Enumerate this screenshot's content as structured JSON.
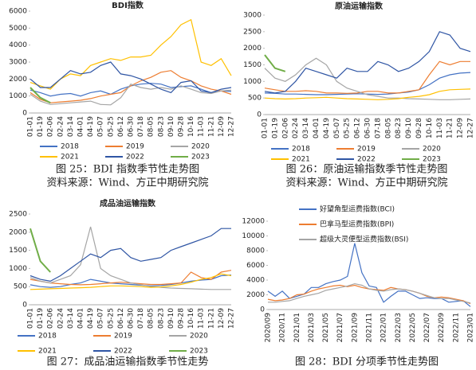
{
  "chart_data": [
    {
      "type": "line",
      "title": "BDI指数",
      "categories": [
        "01-01",
        "01-19",
        "02-06",
        "02-24",
        "03-14",
        "04-01",
        "04-19",
        "05-07",
        "05-25",
        "06-12",
        "06-30",
        "07-18",
        "08-05",
        "08-23",
        "09-10",
        "09-28",
        "10-16",
        "11-03",
        "11-21",
        "12-09",
        "12-27"
      ],
      "ylim": [
        0,
        6000
      ],
      "yticks": [
        0,
        1000,
        2000,
        3000,
        4000,
        5000,
        6000
      ],
      "legend": "bottom",
      "series": [
        {
          "name": "2018",
          "color": "#4472c4",
          "values": [
            1350,
            1200,
            1000,
            1100,
            1150,
            1000,
            1200,
            1300,
            1100,
            1400,
            1600,
            1700,
            1750,
            1700,
            1500,
            1550,
            1600,
            1400,
            1200,
            1300,
            1270
          ]
        },
        {
          "name": "2019",
          "color": "#ed7d31",
          "values": [
            1200,
            800,
            600,
            650,
            700,
            750,
            850,
            1000,
            1100,
            1200,
            1600,
            1900,
            2100,
            2400,
            2500,
            2100,
            1900,
            1600,
            1400,
            1300,
            1100
          ]
        },
        {
          "name": "2020",
          "color": "#a5a5a5",
          "values": [
            1100,
            700,
            500,
            550,
            600,
            650,
            700,
            500,
            480,
            900,
            1700,
            1500,
            1400,
            1500,
            1400,
            1600,
            1400,
            1200,
            1150,
            1300,
            1350
          ]
        },
        {
          "name": "2021",
          "color": "#ffc000",
          "values": [
            1800,
            1600,
            1400,
            2000,
            2300,
            2200,
            2800,
            3000,
            3200,
            3100,
            3300,
            3300,
            3400,
            4000,
            4500,
            5200,
            5500,
            3000,
            2800,
            3200,
            2200
          ]
        },
        {
          "name": "2022",
          "color": "#2f55a4",
          "values": [
            2000,
            1500,
            1500,
            2000,
            2500,
            2300,
            2400,
            2800,
            3000,
            2300,
            2200,
            2000,
            1700,
            1400,
            1200,
            1800,
            1900,
            1300,
            1200,
            1400,
            1500
          ]
        },
        {
          "name": "2023",
          "color": "#70ad47",
          "values": [
            1500,
            900,
            600,
            null,
            null,
            null,
            null,
            null,
            null,
            null,
            null,
            null,
            null,
            null,
            null,
            null,
            null,
            null,
            null,
            null,
            null
          ]
        }
      ]
    },
    {
      "type": "line",
      "title": "原油运输指数",
      "categories": [
        "01-01",
        "01-19",
        "02-06",
        "02-24",
        "03-14",
        "04-01",
        "04-19",
        "05-07",
        "05-25",
        "06-12",
        "06-30",
        "07-18",
        "08-05",
        "08-23",
        "09-10",
        "09-28",
        "10-16",
        "11-03",
        "11-21",
        "12-09",
        "12-27"
      ],
      "ylim": [
        0,
        3000
      ],
      "yticks": [
        0,
        500,
        1000,
        1500,
        2000,
        2500,
        3000
      ],
      "legend": "bottom",
      "series": [
        {
          "name": "2018",
          "color": "#4472c4",
          "values": [
            650,
            640,
            620,
            620,
            610,
            600,
            600,
            610,
            620,
            630,
            620,
            610,
            620,
            650,
            680,
            750,
            900,
            1100,
            1200,
            1250,
            1270
          ]
        },
        {
          "name": "2019",
          "color": "#ed7d31",
          "values": [
            800,
            750,
            700,
            700,
            720,
            700,
            650,
            650,
            640,
            650,
            700,
            700,
            650,
            650,
            700,
            750,
            1200,
            1600,
            1500,
            1600,
            1600
          ]
        },
        {
          "name": "2020",
          "color": "#a5a5a5",
          "values": [
            1400,
            1100,
            1000,
            1200,
            1500,
            1700,
            1500,
            1000,
            800,
            700,
            600,
            550,
            500,
            500,
            480,
            470,
            460,
            450,
            450,
            460,
            470
          ]
        },
        {
          "name": "2021",
          "color": "#ffc000",
          "values": [
            500,
            480,
            470,
            480,
            500,
            510,
            520,
            500,
            480,
            470,
            460,
            450,
            460,
            480,
            520,
            550,
            600,
            700,
            750,
            760,
            770
          ]
        },
        {
          "name": "2022",
          "color": "#2f55a4",
          "values": [
            700,
            650,
            700,
            1000,
            1400,
            1300,
            1200,
            1100,
            1400,
            1300,
            1300,
            1600,
            1500,
            1300,
            1400,
            1600,
            1900,
            2500,
            2400,
            2000,
            1900
          ]
        },
        {
          "name": "2023",
          "color": "#70ad47",
          "values": [
            1800,
            1400,
            1300,
            null,
            null,
            null,
            null,
            null,
            null,
            null,
            null,
            null,
            null,
            null,
            null,
            null,
            null,
            null,
            null,
            null,
            null
          ]
        }
      ]
    },
    {
      "type": "line",
      "title": "成品油运输指数",
      "categories": [
        "01-01",
        "01-19",
        "02-06",
        "02-24",
        "03-14",
        "04-01",
        "04-19",
        "05-07",
        "05-25",
        "06-12",
        "06-30",
        "07-18",
        "08-05",
        "08-23",
        "09-10",
        "09-28",
        "10-16",
        "11-03",
        "11-21",
        "12-09",
        "12-27"
      ],
      "ylim": [
        0,
        2500
      ],
      "yticks": [
        0,
        500,
        1000,
        1500,
        2000,
        2500
      ],
      "legend": "bottom",
      "series": [
        {
          "name": "2018",
          "color": "#4472c4",
          "values": [
            550,
            500,
            480,
            500,
            560,
            600,
            700,
            650,
            600,
            580,
            560,
            540,
            520,
            530,
            560,
            600,
            650,
            680,
            700,
            800,
            820
          ]
        },
        {
          "name": "2019",
          "color": "#ed7d31",
          "values": [
            700,
            650,
            600,
            580,
            560,
            550,
            560,
            580,
            600,
            620,
            600,
            580,
            560,
            560,
            580,
            600,
            900,
            750,
            700,
            900,
            950
          ]
        },
        {
          "name": "2020",
          "color": "#a5a5a5",
          "values": [
            750,
            650,
            600,
            700,
            800,
            1100,
            2150,
            1000,
            800,
            700,
            600,
            550,
            500,
            480,
            460,
            450,
            440,
            430,
            420,
            420,
            420
          ]
        },
        {
          "name": "2021",
          "color": "#ffc000",
          "values": [
            420,
            430,
            440,
            450,
            460,
            470,
            480,
            500,
            520,
            520,
            510,
            500,
            480,
            490,
            520,
            560,
            620,
            700,
            750,
            850,
            800
          ]
        },
        {
          "name": "2022",
          "color": "#2f55a4",
          "values": [
            800,
            700,
            650,
            800,
            1000,
            1200,
            1400,
            1300,
            1500,
            1550,
            1300,
            1200,
            1250,
            1300,
            1500,
            1600,
            1700,
            1800,
            1900,
            2100,
            2100
          ]
        },
        {
          "name": "2023",
          "color": "#70ad47",
          "values": [
            2100,
            1200,
            900,
            null,
            null,
            null,
            null,
            null,
            null,
            null,
            null,
            null,
            null,
            null,
            null,
            null,
            null,
            null,
            null,
            null,
            null
          ]
        }
      ]
    },
    {
      "type": "line",
      "categories": [
        "2020/09",
        null,
        "2020/11",
        null,
        "2021/01",
        null,
        "2021/03",
        null,
        "2021/05",
        null,
        "2021/07",
        null,
        "2021/09",
        null,
        "2021/11",
        null,
        "2022/01",
        null,
        "2022/03",
        null,
        "2022/05",
        null,
        "2022/07",
        null,
        "2022/09",
        null,
        "2022/11",
        null,
        "2023/01"
      ],
      "ylim": [
        0,
        12000
      ],
      "yticks": [
        0,
        2000,
        4000,
        6000,
        8000,
        10000,
        12000
      ],
      "legend": "top-left",
      "series": [
        {
          "name": "好望角型运费指数(BCI)",
          "color": "#4472c4",
          "values": [
            2500,
            1800,
            2500,
            1500,
            1800,
            2100,
            3000,
            3000,
            3500,
            3800,
            4000,
            4500,
            9000,
            5000,
            3200,
            3000,
            1000,
            1800,
            2500,
            2500,
            2000,
            1500,
            1600,
            1500,
            1500,
            1000,
            1100,
            1200,
            400
          ]
        },
        {
          "name": "巴拿马型运费指数(BPI)",
          "color": "#ed7d31",
          "values": [
            1400,
            1200,
            1300,
            1500,
            2000,
            2100,
            2500,
            2800,
            3000,
            3200,
            3300,
            3100,
            3300,
            3000,
            2800,
            2700,
            2600,
            3000,
            2800,
            2700,
            2500,
            2200,
            1800,
            1600,
            1700,
            1600,
            1400,
            1200,
            800
          ]
        },
        {
          "name": "超级大灵便型运费指数(BSI)",
          "color": "#a5a5a5",
          "values": [
            1000,
            1000,
            1100,
            1200,
            1500,
            1800,
            2000,
            2200,
            2600,
            2800,
            3000,
            3200,
            3500,
            3300,
            2800,
            2600,
            2500,
            2700,
            2800,
            2700,
            2500,
            2200,
            1900,
            1600,
            1500,
            1500,
            1300,
            1100,
            900
          ]
        }
      ]
    }
  ],
  "captions": [
    "图 25：BDI 指数季节性走势图",
    "资料来源：Wind、方正中期研究院",
    "图 26：原油运输指数季节性走势图",
    "资料来源：Wind、方正中期研究院",
    "图 27：成品油运输指数季节性走势",
    "图 28：BDI 分项季节性走势图"
  ]
}
